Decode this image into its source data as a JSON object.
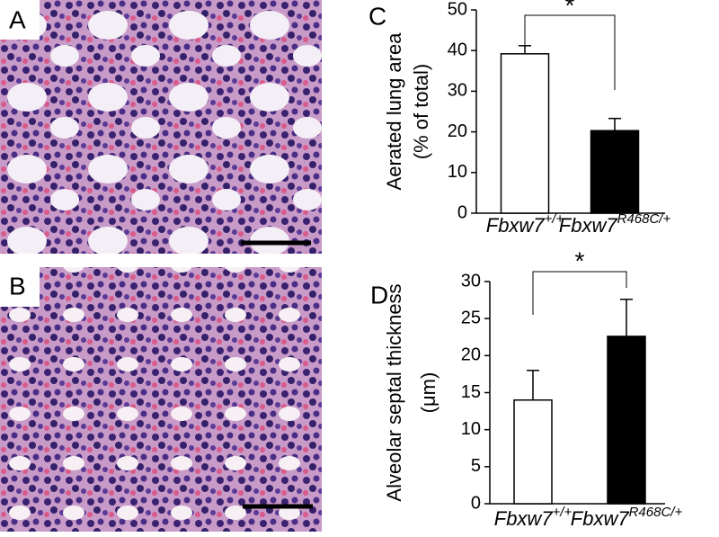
{
  "images": [
    {
      "panel": "A"
    },
    {
      "panel": "B"
    }
  ],
  "chart_data": [
    {
      "type": "bar",
      "panel": "C",
      "ylabel": [
        "Aerated lung area",
        "(% of total)"
      ],
      "categories": [
        "Fbxw7+/+",
        "Fbxw7R468C/+"
      ],
      "values": [
        39.2,
        20.3
      ],
      "errors": [
        2,
        3
      ],
      "colors": [
        "#ffffff",
        "#000000"
      ],
      "ylim": [
        0,
        50
      ],
      "yticks": [
        0,
        10,
        20,
        30,
        40,
        50
      ],
      "significance": "*"
    },
    {
      "type": "bar",
      "panel": "D",
      "ylabel": [
        "Alveolar septal thickness",
        "(μm)"
      ],
      "categories": [
        "Fbxw7+/+",
        "Fbxw7R468C/+"
      ],
      "values": [
        14,
        22.6
      ],
      "errors": [
        4,
        5
      ],
      "colors": [
        "#ffffff",
        "#000000"
      ],
      "ylim": [
        0,
        30
      ],
      "yticks": [
        0,
        5,
        10,
        15,
        20,
        25,
        30
      ],
      "significance": "*"
    }
  ]
}
